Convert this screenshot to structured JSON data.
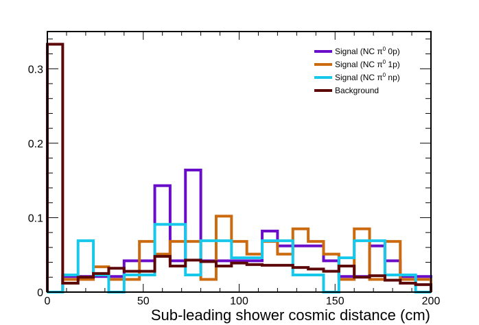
{
  "chart_data": {
    "type": "step-histogram",
    "title": "",
    "xlabel": "Sub-leading shower cosmic distance (cm)",
    "ylabel": "",
    "xlim": [
      0,
      200
    ],
    "ylim": [
      0,
      0.35
    ],
    "x_ticks": [
      0,
      50,
      100,
      150,
      200
    ],
    "y_ticks": [
      0,
      0.1,
      0.2,
      0.3
    ],
    "x_tick_labels": [
      "0",
      "50",
      "100",
      "150",
      "200"
    ],
    "y_tick_labels": [
      "0",
      "0.1",
      "0.2",
      "0.3"
    ],
    "bin_width": 8,
    "bin_edges": [
      0,
      8,
      16,
      24,
      32,
      40,
      48,
      56,
      64,
      72,
      80,
      88,
      96,
      104,
      112,
      120,
      128,
      136,
      144,
      152,
      160,
      168,
      176,
      184,
      192,
      200
    ],
    "legend_position": "top-right",
    "series": [
      {
        "name": "Signal (NC π⁰ 0p)",
        "label_prefix": "Signal (NC π",
        "label_sup": "0",
        "label_suffix": " 0p)",
        "color": "#6a0dc9",
        "values": [
          0,
          0.021,
          0.021,
          0.021,
          0.021,
          0.042,
          0.042,
          0.143,
          0.042,
          0.164,
          0.042,
          0.042,
          0.042,
          0.042,
          0.082,
          0.062,
          0.062,
          0.062,
          0.042,
          0.021,
          0.021,
          0.062,
          0.042,
          0.021,
          0.021
        ]
      },
      {
        "name": "Signal (NC π⁰ 1p)",
        "label_prefix": "Signal (NC π",
        "label_sup": "0",
        "label_suffix": " 1p)",
        "color": "#cc6a10",
        "values": [
          0,
          0.017,
          0.017,
          0.034,
          0.017,
          0.017,
          0.068,
          0.051,
          0.068,
          0.068,
          0.017,
          0.102,
          0.068,
          0.051,
          0.068,
          0.051,
          0.085,
          0.068,
          0.051,
          0.017,
          0.085,
          0.017,
          0.068,
          0.017,
          0.017
        ]
      },
      {
        "name": "Signal (NC π⁰ np)",
        "label_prefix": "Signal (NC π",
        "label_sup": "0",
        "label_suffix": " np)",
        "color": "#18c8ea",
        "values": [
          0,
          0.023,
          0.069,
          0.023,
          0.0,
          0.023,
          0.023,
          0.091,
          0.091,
          0.023,
          0.069,
          0.069,
          0.046,
          0.046,
          0.069,
          0.069,
          0.023,
          0.023,
          0.0,
          0.046,
          0.069,
          0.069,
          0.023,
          0.023,
          0.0
        ]
      },
      {
        "name": "Background",
        "label_prefix": "Background",
        "label_sup": "",
        "label_suffix": "",
        "color": "#5c0808",
        "values": [
          0.333,
          0.012,
          0.02,
          0.025,
          0.032,
          0.028,
          0.028,
          0.048,
          0.035,
          0.043,
          0.041,
          0.035,
          0.039,
          0.037,
          0.036,
          0.036,
          0.033,
          0.031,
          0.028,
          0.035,
          0.02,
          0.022,
          0.016,
          0.012,
          0.01
        ]
      }
    ]
  }
}
